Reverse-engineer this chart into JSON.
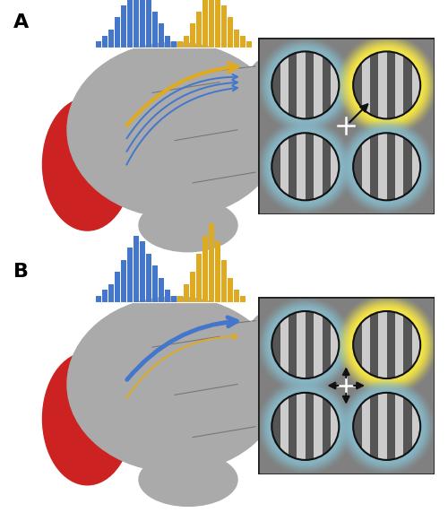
{
  "fig_width": 5.0,
  "fig_height": 5.91,
  "dpi": 100,
  "background": "#ffffff",
  "label_A": "A",
  "label_B": "B",
  "label_fontsize": 16,
  "blue_color": "#4477CC",
  "gold_color": "#DDAA22",
  "red_color": "#CC2222",
  "hist_blue_values": [
    1,
    2,
    3,
    5,
    7,
    9,
    11,
    10,
    8,
    6,
    4,
    2,
    1
  ],
  "hist_gold_values_A": [
    1,
    2,
    4,
    6,
    9,
    12,
    10,
    7,
    5,
    3,
    2,
    1
  ],
  "hist_gold_values_B": [
    1,
    3,
    5,
    8,
    11,
    13,
    10,
    7,
    4,
    2,
    1
  ],
  "glow_yellow": "#FFEE44",
  "glow_blue": "#88BBCC",
  "stripe_light": "#cccccc",
  "stripe_dark": "#555555",
  "circle_bg": "#888888",
  "box_bg": "#808080",
  "box_border": "#222222"
}
